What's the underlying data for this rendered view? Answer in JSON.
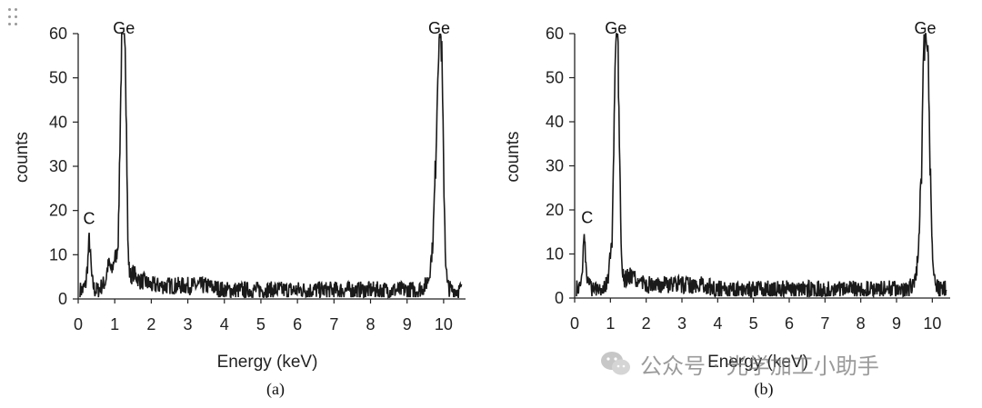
{
  "chart_data": [
    {
      "type": "line",
      "caption": "(a)",
      "xlabel": "Energy  (keV)",
      "ylabel": "counts",
      "xlim": [
        0,
        10.6
      ],
      "ylim": [
        0,
        60
      ],
      "x_ticks": [
        0,
        1,
        2,
        3,
        4,
        5,
        6,
        7,
        8,
        9,
        10
      ],
      "y_ticks": [
        0,
        10,
        20,
        30,
        40,
        50,
        60
      ],
      "grid": false,
      "series": [
        {
          "x": [
            0.05,
            0.12,
            0.2,
            0.26,
            0.3,
            0.34,
            0.38,
            0.45,
            0.55,
            0.65,
            0.75,
            0.8,
            0.85,
            0.92,
            0.98,
            1.05,
            1.1,
            1.15,
            1.2,
            1.24,
            1.28,
            1.32,
            1.36,
            1.4,
            1.45,
            1.5,
            1.6,
            1.7,
            1.8,
            2.0,
            2.2,
            2.5,
            3.0,
            3.5,
            4.0,
            4.5,
            5.0,
            5.5,
            6.0,
            6.5,
            7.0,
            7.5,
            8.0,
            8.5,
            9.0,
            9.3,
            9.5,
            9.6,
            9.7,
            9.78,
            9.85,
            9.9,
            9.95,
            10.0,
            10.05,
            10.1,
            10.2,
            10.3,
            10.4,
            10.5
          ],
          "y": [
            2,
            2,
            3,
            8,
            14,
            9,
            4,
            2,
            2,
            3,
            4,
            7,
            8,
            6,
            9,
            10,
            14,
            40,
            62,
            62,
            62,
            40,
            12,
            6,
            5,
            6,
            5,
            4,
            4,
            3,
            3,
            3,
            3,
            3,
            2,
            2,
            2,
            2,
            2,
            2,
            2,
            2,
            2,
            2,
            2,
            2,
            3,
            5,
            12,
            30,
            55,
            62,
            55,
            30,
            10,
            3,
            2,
            2,
            2,
            2
          ],
          "noise_amplitude": 2
        }
      ],
      "annotations": [
        {
          "text": "Ge",
          "x": 1.25,
          "y": 64
        },
        {
          "text": "C",
          "x": 0.3,
          "y": 17
        },
        {
          "text": "Ge",
          "x": 9.88,
          "y": 64
        }
      ]
    },
    {
      "type": "line",
      "caption": "(b)",
      "xlabel": "Energy  (keV)",
      "ylabel": "counts",
      "xlim": [
        0,
        10.5
      ],
      "ylim": [
        0,
        60
      ],
      "x_ticks": [
        0,
        1,
        2,
        3,
        4,
        5,
        6,
        7,
        8,
        9,
        10
      ],
      "y_ticks": [
        0,
        10,
        20,
        30,
        40,
        50,
        60
      ],
      "grid": false,
      "series": [
        {
          "x": [
            0.05,
            0.12,
            0.18,
            0.22,
            0.26,
            0.3,
            0.34,
            0.38,
            0.45,
            0.55,
            0.65,
            0.75,
            0.85,
            0.95,
            1.0,
            1.05,
            1.08,
            1.12,
            1.16,
            1.2,
            1.24,
            1.3,
            1.35,
            1.4,
            1.5,
            1.6,
            1.7,
            1.8,
            2.0,
            2.2,
            2.5,
            3.0,
            3.5,
            4.0,
            4.5,
            5.0,
            5.5,
            6.0,
            6.5,
            7.0,
            7.5,
            8.0,
            8.5,
            9.0,
            9.3,
            9.45,
            9.55,
            9.62,
            9.7,
            9.76,
            9.82,
            9.88,
            9.94,
            10.0,
            10.1,
            10.2,
            10.3,
            10.4
          ],
          "y": [
            2,
            2,
            3,
            8,
            15,
            10,
            6,
            3,
            2,
            2,
            3,
            2,
            3,
            5,
            10,
            13,
            25,
            45,
            62,
            62,
            40,
            10,
            5,
            4,
            5,
            5,
            4,
            4,
            3,
            3,
            3,
            3,
            3,
            2,
            2,
            2,
            2,
            2,
            2,
            2,
            2,
            2,
            2,
            2,
            2,
            3,
            5,
            12,
            30,
            55,
            62,
            55,
            30,
            10,
            3,
            2,
            2,
            2
          ],
          "noise_amplitude": 2
        }
      ],
      "annotations": [
        {
          "text": "Ge",
          "x": 1.15,
          "y": 64
        },
        {
          "text": "C",
          "x": 0.35,
          "y": 17
        },
        {
          "text": "Ge",
          "x": 9.8,
          "y": 64
        }
      ]
    }
  ],
  "watermark": {
    "text": "公众号 · 光学加工小助手",
    "icon": "wechat-icon"
  }
}
